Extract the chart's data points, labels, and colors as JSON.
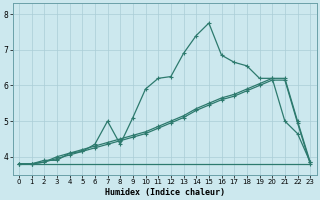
{
  "xlabel": "Humidex (Indice chaleur)",
  "bg_color": "#cce8ee",
  "grid_color": "#aacdd6",
  "line_color": "#2d7a6e",
  "xlim": [
    -0.5,
    23.5
  ],
  "ylim": [
    3.5,
    8.3
  ],
  "yticks": [
    4,
    5,
    6,
    7,
    8
  ],
  "xticks": [
    0,
    1,
    2,
    3,
    4,
    5,
    6,
    7,
    8,
    9,
    10,
    11,
    12,
    13,
    14,
    15,
    16,
    17,
    18,
    19,
    20,
    21,
    22,
    23
  ],
  "series1_x": [
    0,
    1,
    2,
    3,
    4,
    5,
    6,
    7,
    8,
    9,
    10,
    11,
    12,
    13,
    14,
    15,
    16,
    17,
    18,
    19,
    20,
    21,
    22,
    23
  ],
  "series1_y": [
    3.8,
    3.8,
    3.9,
    3.9,
    4.1,
    4.15,
    4.35,
    5.0,
    4.35,
    5.1,
    5.9,
    6.2,
    6.25,
    6.9,
    7.4,
    7.75,
    6.85,
    6.65,
    6.55,
    6.2,
    6.2,
    5.0,
    4.65,
    3.85
  ],
  "series2_x": [
    0,
    1,
    2,
    3,
    4,
    5,
    6,
    7,
    8,
    9,
    10,
    11,
    12,
    13,
    14,
    15,
    16,
    17,
    18,
    19,
    20,
    21,
    22,
    23
  ],
  "series2_y": [
    3.8,
    3.8,
    3.85,
    4.0,
    4.1,
    4.2,
    4.3,
    4.4,
    4.5,
    4.6,
    4.7,
    4.85,
    5.0,
    5.15,
    5.35,
    5.5,
    5.65,
    5.75,
    5.9,
    6.05,
    6.2,
    6.2,
    5.0,
    3.85
  ],
  "series3_x": [
    0,
    1,
    2,
    3,
    4,
    5,
    6,
    7,
    8,
    9,
    10,
    11,
    12,
    13,
    14,
    15,
    16,
    17,
    18,
    19,
    20,
    21,
    22,
    23
  ],
  "series3_y": [
    3.8,
    3.8,
    3.85,
    3.95,
    4.05,
    4.15,
    4.25,
    4.35,
    4.45,
    4.55,
    4.65,
    4.8,
    4.95,
    5.1,
    5.3,
    5.45,
    5.6,
    5.7,
    5.85,
    6.0,
    6.15,
    6.15,
    4.95,
    3.8
  ],
  "series4_x": [
    0,
    23
  ],
  "series4_y": [
    3.8,
    3.8
  ]
}
